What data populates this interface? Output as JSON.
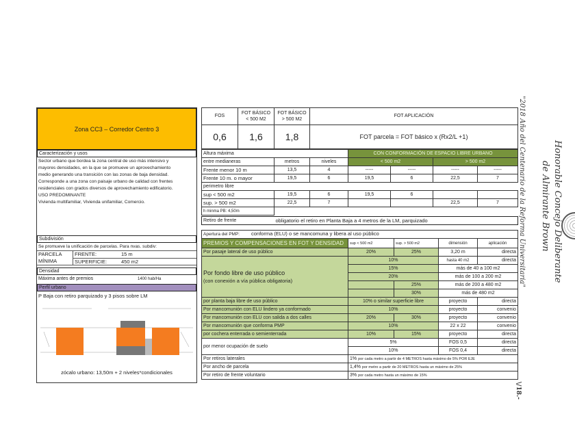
{
  "left": {
    "title": "Zona CC3 – Corredor Centro 3",
    "caract_label": "Caracterización y usos",
    "description": [
      "Sector urbano que bordea la zona central de uso más intensivo y",
      "mayores densidades, en la que se promueve un aprovechamiento",
      "medio generando una transición con las zonas de baja densidad.",
      "Corresponde a una zona con paisaje urbano de calidad con frentes",
      "residenciales con grados diversos de aprovechamiento edificatorio."
    ],
    "uso_label": "USO PREDOMINANTE",
    "uso_value": "Vivienda multifamiliar, Vivienda unifamiliar, Comercio.",
    "subdivision_label": "Subdivisión",
    "subdivision_text": "Se promueve la unificación de parcelas. Para nvas. subdiv:",
    "parcela1": "PARCELA",
    "parcela2": "MÍNIMA",
    "frente_label": "FRENTE:",
    "frente_value": "15 m",
    "superficie_label": "SUPERFICIE:",
    "superficie_value": "450 m2",
    "densidad_label": "Densidad",
    "densidad_text": "Máxima antes de premios",
    "densidad_value": "1400 hab/Ha",
    "perfil_label": "Perfil urbano",
    "perfil_text": "P Baja con retiro parquizado y 3 pisos sobre LM",
    "zocalo": "zócalo urbano:  13,50m  + 2 niveles*condicionales",
    "colors": {
      "title": "#fdbd00",
      "perfil": "#a28fbe",
      "building": "#f47c20"
    }
  },
  "top": {
    "h_fos": "FOS",
    "h_fb1": "FOT BÁSICO",
    "h_fb1b": "< 500 M2",
    "h_fb2": "FOT BÁSICO",
    "h_fb2b": "> 500 M2",
    "h_app": "FOT APLICACIÓN",
    "fos": "0,6",
    "fb1": "1,6",
    "fb2": "1,8",
    "formula": "FOT parcela = FOT básico x (Rx2/L +1)"
  },
  "altura": {
    "title": "Altura máxima",
    "elu": "CON CONFORMACIÓN DE ESPACIO LIBRE URBANO",
    "entre": "entre medianeras",
    "metros": "metros",
    "niveles": "niveles",
    "lt500": "< 500 m2",
    "gt500": "> 500 m2",
    "rows": [
      [
        "Frente menor 10 m",
        "13,5",
        "4",
        "-----",
        "-----",
        "-----",
        "-----"
      ],
      [
        "Frente 10 m. o mayor",
        "19,5",
        "6",
        "19,5",
        "6",
        "22,5",
        "7"
      ]
    ],
    "perimetro": "perimetro libre",
    "rows2": [
      [
        "sup < 500 m2",
        "19,5",
        "6",
        "19,5",
        "6",
        "",
        ""
      ],
      [
        "sup. > 500 m2",
        "22,5",
        "7",
        "",
        "",
        "22,5",
        "7"
      ]
    ],
    "hmin": "h minma PB: 4,50m",
    "retiro_label": "Retiro de frente",
    "retiro_text": "obligatorio el retiro en Planta Baja a 4 metros de la LM, parquizado"
  },
  "premios": {
    "apertura_label": "Apertura del PMP:",
    "apertura_text": "conforma (ELU)  o se mancomuna y libera al uso público",
    "header": "PREMIOS Y COMPENSACIONES EN FOT Y DENSIDAD",
    "h_lt": "sup < 500 m2",
    "h_gt": "sup. > 500 m2",
    "h_dim": "dimensión",
    "h_app": "aplicación",
    "pasaje": [
      "Por pasaje lateral de uso público",
      "20%",
      "25%",
      "3,20 m",
      "directa"
    ],
    "fondo_label": "Por fondo libre de uso público",
    "fondo_sub": "(con conexión a vía pública obligatoria)",
    "fondo": [
      [
        "10%",
        "hasta 40 m2",
        "directa"
      ],
      [
        "15%",
        "más de 40 a 100 m2"
      ],
      [
        "20%",
        "más de 100 a 200 m2"
      ],
      [
        "25%",
        "más de 200 a 480 m2"
      ],
      [
        "30%",
        "más de 480 m2"
      ]
    ],
    "planta": [
      "por planta baja libre de uso público",
      "10%   o similar superficie libre",
      "proyecto",
      "directa"
    ],
    "lindero": [
      "Por mancomunión con ELU lindero ya conformado",
      "10%",
      "proyecto",
      "convenio"
    ],
    "salida": [
      "Por mancomunión con ELU con salida a dos calles",
      "20%",
      "30%",
      "proyecto",
      "convenio"
    ],
    "pmp": [
      "Por mancomunión que conforma PMP",
      "10%",
      "22 x 22",
      "convenio"
    ],
    "cochera": [
      "por cochera enterrada o semienterrada",
      "10%",
      "15%",
      "proyecto",
      "directa"
    ],
    "menor_label": "por menor ocupación de suelo",
    "menor": [
      [
        "5%",
        "FOS 0,5",
        "directa"
      ],
      [
        "10%",
        "FOS 0,4",
        "directa"
      ]
    ],
    "laterales": [
      "Por retiros laterales",
      "1%",
      "por cada metro a partir de 4 METROS hasta máximo de 5% POR EJE"
    ],
    "ancho": [
      "Por ancho de parcela",
      "1,4%",
      "por metro a partir de 20 METROS hasta un máximo de 25%"
    ],
    "frente": [
      "Por retiro de frente voluntario",
      "3%",
      "por cada metro hasta un máximo de 15%"
    ]
  },
  "margin": {
    "line1": "Honorable Concejo Deliberante",
    "line2": "de Almirante Brown",
    "year": "\"2018 Año del Centenario de la Reforma Universitaria\"",
    "folio": "\\/18.-"
  }
}
